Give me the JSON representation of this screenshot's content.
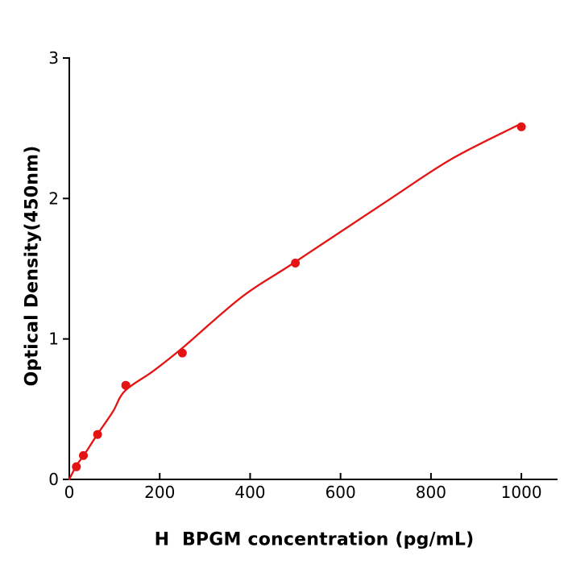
{
  "chart_data": {
    "type": "scatter",
    "title": "",
    "xlabel": "H  BPGM concentration (pg/mL)",
    "ylabel": "Optical Density(450nm)",
    "xlim": [
      0,
      1080
    ],
    "ylim": [
      0,
      3
    ],
    "x_ticks": [
      "0",
      "200",
      "400",
      "600",
      "800",
      "1000"
    ],
    "y_ticks": [
      "0",
      "1",
      "2",
      "3"
    ],
    "grid": false,
    "legend_position": "none",
    "series": [
      {
        "name": "standard-points",
        "type": "scatter",
        "color": "#e41414",
        "x": [
          15.6,
          31.2,
          62.5,
          125,
          250,
          500,
          1000
        ],
        "y": [
          0.09,
          0.17,
          0.32,
          0.67,
          0.9,
          1.54,
          2.51
        ]
      },
      {
        "name": "fitted-curve",
        "type": "line",
        "color": "#e41414",
        "x": [
          0,
          16,
          34,
          62,
          96,
          123,
          185,
          248,
          382,
          496,
          702,
          845,
          991
        ],
        "y": [
          0,
          0.1,
          0.18,
          0.32,
          0.48,
          0.63,
          0.77,
          0.93,
          1.3,
          1.54,
          1.98,
          2.28,
          2.52
        ]
      }
    ]
  },
  "colors": {
    "curve": "#e41414",
    "marker": "#e41414",
    "axis": "#000000",
    "text": "#000000",
    "background": "#ffffff"
  }
}
